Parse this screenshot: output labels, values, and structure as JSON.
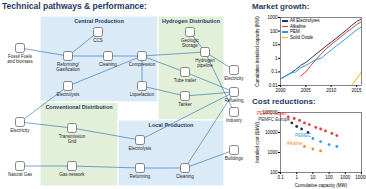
{
  "header": {
    "title": "Technical pathways & performance:"
  },
  "diagram": {
    "sections": [
      "Central Production",
      "Hydrogen Distribution",
      "Conventional Distribution",
      "Local Production"
    ],
    "nodes": [
      "Fossil Fuels and biomass",
      "Electricity",
      "Natural Gas",
      "CCS",
      "Reforming/ Gasification",
      "Cleaning",
      "Compression",
      "Electrolysis",
      "Liquefaction",
      "Geologic Storage",
      "Hydrogen pipeline",
      "Tube trailer",
      "Tanker",
      "Transmission Grid",
      "Gas network",
      "Electrolysis",
      "Reforming",
      "Cleaning",
      "Electricity",
      "Refueling",
      "Industry",
      "Buildings"
    ]
  },
  "chart_data": [
    {
      "type": "line",
      "title": "Market growth:",
      "log": "y",
      "grid": false,
      "legend": "top-left",
      "x": [
        2000,
        2001,
        2002,
        2003,
        2004,
        2005,
        2006,
        2007,
        2008,
        2009,
        2010,
        2011,
        2012,
        2013,
        2014,
        2015,
        2016
      ],
      "xlim": [
        2000,
        2016
      ],
      "xticks": [
        2000,
        2005,
        2010,
        2015
      ],
      "ylim": [
        0.01,
        1000
      ],
      "yticks": [
        0.01,
        0.1,
        1,
        10,
        100,
        1000
      ],
      "ylabel": "Cumulative installed capacity (MW)",
      "series": [
        {
          "name": "All Electrolytes",
          "color": "#1f3864",
          "values": [
            0.03,
            0.05,
            0.08,
            0.15,
            0.3,
            0.5,
            1,
            2,
            4,
            8,
            15,
            30,
            60,
            120,
            250,
            500,
            800
          ]
        },
        {
          "name": "Alkaline",
          "color": "#e03c31",
          "values": [
            null,
            null,
            null,
            null,
            0.05,
            0.1,
            0.3,
            0.8,
            2,
            5,
            10,
            20,
            40,
            80,
            150,
            300,
            500
          ]
        },
        {
          "name": "PEM",
          "color": "#2e9be6",
          "values": [
            0.03,
            0.05,
            0.08,
            0.1,
            0.2,
            0.3,
            0.5,
            0.8,
            1,
            2,
            4,
            8,
            15,
            30,
            60,
            120,
            200
          ]
        },
        {
          "name": "Solid Oxide",
          "color": "#f2b705",
          "values": [
            null,
            null,
            null,
            null,
            null,
            null,
            null,
            null,
            null,
            null,
            null,
            null,
            null,
            null,
            0.01,
            0.03,
            0.1
          ]
        }
      ]
    },
    {
      "type": "scatter",
      "title": "Cost reductions:",
      "log": true,
      "grid": false,
      "xlim": [
        0.1,
        10000
      ],
      "xticks": [
        0.1,
        1,
        10,
        100,
        1000,
        10000
      ],
      "ylim": [
        100,
        100000
      ],
      "yticks": [
        100,
        1000,
        10000,
        100000
      ],
      "xlabel": "Cumulative capacity (MW)",
      "ylabel": "Installed cost ($/kW)",
      "series": [
        {
          "name": "PEMFC Japan",
          "color": "#e03c31",
          "marker": "circle",
          "x": [
            0.3,
            0.7,
            1.5,
            3,
            6,
            15,
            30,
            60,
            150,
            300
          ],
          "y": [
            60000,
            50000,
            40000,
            30000,
            25000,
            18000,
            15000,
            12000,
            9000,
            7000
          ]
        },
        {
          "name": "PEMFC Europe",
          "color": "#333333",
          "marker": "circle",
          "x": [
            0.5,
            1,
            2,
            5
          ],
          "y": [
            30000,
            20000,
            15000,
            10000
          ]
        },
        {
          "name": "PEMEC",
          "color": "#2e9be6",
          "marker": "circle",
          "x": [
            10,
            30,
            100,
            300
          ],
          "y": [
            5000,
            3500,
            2500,
            2000
          ]
        },
        {
          "name": "Alkaline",
          "color": "#f28e2b",
          "marker": "circle",
          "x": [
            3,
            10,
            30
          ],
          "y": [
            2000,
            1500,
            1200
          ]
        }
      ]
    }
  ]
}
